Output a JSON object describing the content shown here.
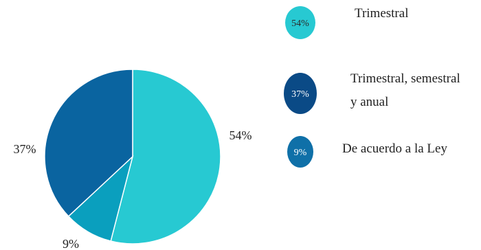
{
  "chart_data": {
    "type": "pie",
    "categories": [
      "Trimestral",
      "De acuerdo a la Ley",
      "Trimestral, semestral y anual"
    ],
    "values": [
      54,
      9,
      37
    ],
    "value_labels": [
      "54%",
      "9%",
      "37%"
    ],
    "colors": [
      "#27c9d2",
      "#0a9fbe",
      "#0a64a0"
    ],
    "legend": [
      {
        "badge": "54%",
        "lines": [
          "Trimestral"
        ],
        "color": "#27c9d2",
        "text_color": "#2b2b2b"
      },
      {
        "badge": "37%",
        "lines": [
          "Trimestral, semestral",
          "y anual"
        ],
        "color": "#0a4a86",
        "text_color": "#ffffff"
      },
      {
        "badge": "9%",
        "lines": [
          "De acuerdo a la Ley"
        ],
        "color": "#0f70a8",
        "text_color": "#ffffff"
      }
    ],
    "legend_placement": "right"
  }
}
